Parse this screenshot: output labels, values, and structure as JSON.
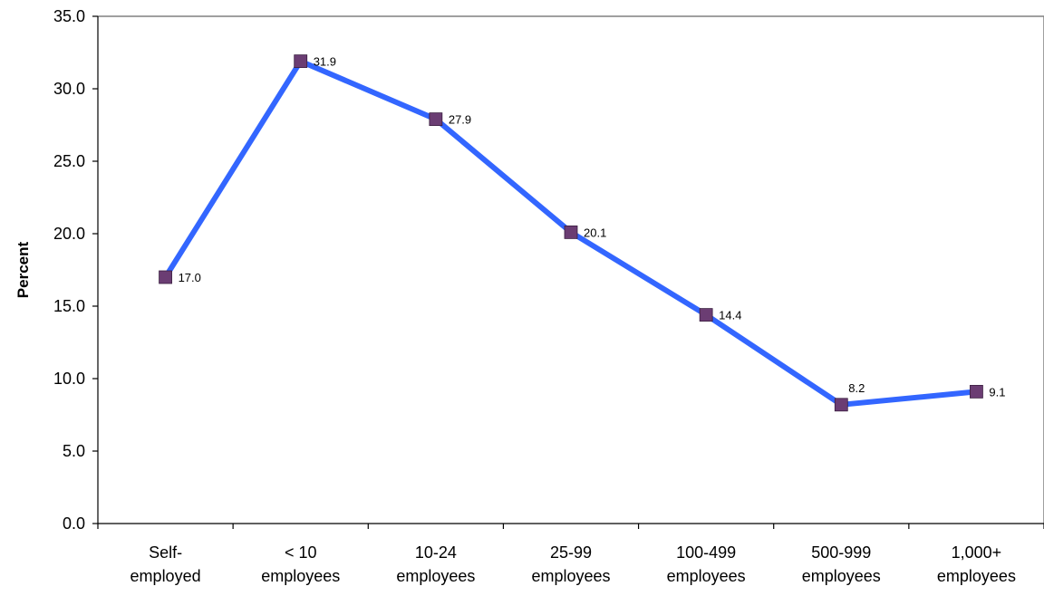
{
  "chart_data": {
    "type": "line",
    "title": "",
    "xlabel": "",
    "ylabel": "Percent",
    "categories": [
      [
        "Self-",
        "employed"
      ],
      [
        "< 10",
        "employees"
      ],
      [
        "10-24",
        "employees"
      ],
      [
        "25-99",
        "employees"
      ],
      [
        "100-499",
        "employees"
      ],
      [
        "500-999",
        "employees"
      ],
      [
        "1,000+",
        "employees"
      ]
    ],
    "series": [
      {
        "values": [
          17.0,
          31.9,
          27.9,
          20.1,
          14.4,
          8.2,
          9.1
        ],
        "line_color": "#3366FF",
        "marker_color": "#6B3D73"
      }
    ],
    "data_labels": [
      "17.0",
      "31.9",
      "27.9",
      "20.1",
      "14.4",
      "8.2",
      "9.1"
    ],
    "y_ticks": [
      "0.0",
      "5.0",
      "10.0",
      "15.0",
      "20.0",
      "25.0",
      "30.0",
      "35.0"
    ],
    "ylim": [
      0,
      35
    ],
    "grid": false,
    "legend": "none"
  }
}
